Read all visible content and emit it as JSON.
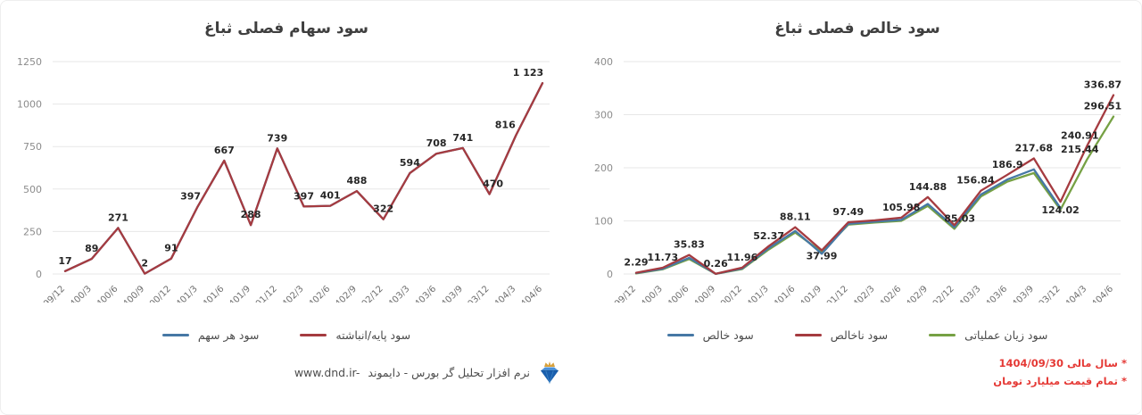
{
  "colors": {
    "red": "#a53b40",
    "blue": "#4678a5",
    "green": "#76a144",
    "grid": "#e7e7e7",
    "ytick": "#8c8c8c",
    "xtick": "#6f6f6f",
    "data_label": "#262626",
    "note_red": "#e53935"
  },
  "footer": {
    "website": "www.dnd.ir-",
    "brand": "نرم افزار تحلیل گر بورس - دایموند",
    "logo": "diamond-crown-logo",
    "notes": [
      "* سال مالی 1404/09/30",
      "* تمام قیمت میلیارد تومان"
    ]
  },
  "chart_data": [
    {
      "type": "line",
      "title": "سود سهام فصلی ثباغ",
      "xlabel": "",
      "ylabel": "",
      "ylim": [
        0,
        1250
      ],
      "yticks": [
        0,
        250,
        500,
        750,
        1000,
        1250
      ],
      "grid": true,
      "legend_position": "bottom",
      "categories": [
        "1399/12",
        "1400/3",
        "1400/6",
        "1400/9",
        "1400/12",
        "1401/3",
        "1401/6",
        "1401/9",
        "1401/12",
        "1402/3",
        "1402/6",
        "1402/9",
        "1402/12",
        "1403/3",
        "1403/6",
        "1403/9",
        "1403/12",
        "1404/3",
        "1404/6"
      ],
      "series": [
        {
          "name": "سود هر سهم",
          "color": "blue",
          "values": [
            17,
            89,
            271,
            2,
            91,
            397,
            667,
            288,
            739,
            397,
            401,
            488,
            322,
            594,
            708,
            741,
            470,
            816,
            1123
          ]
        },
        {
          "name": "سود پایه/انباشته",
          "color": "red",
          "values": [
            17,
            89,
            271,
            2,
            91,
            397,
            667,
            288,
            739,
            397,
            401,
            488,
            322,
            594,
            708,
            741,
            470,
            816,
            1123
          ]
        }
      ],
      "legend": [
        {
          "label": "سود هر سهم",
          "color": "blue"
        },
        {
          "label": "سود پایه/انباشته",
          "color": "red"
        }
      ],
      "point_labels": [
        {
          "i": 0,
          "s": 1,
          "t": "17"
        },
        {
          "i": 1,
          "s": 1,
          "t": "89"
        },
        {
          "i": 2,
          "s": 1,
          "t": "271"
        },
        {
          "i": 3,
          "s": 1,
          "t": "2"
        },
        {
          "i": 4,
          "s": 1,
          "t": "91"
        },
        {
          "i": 5,
          "s": 1,
          "t": "397",
          "dx": -8
        },
        {
          "i": 6,
          "s": 1,
          "t": "667"
        },
        {
          "i": 7,
          "s": 1,
          "t": "288"
        },
        {
          "i": 8,
          "s": 1,
          "t": "739"
        },
        {
          "i": 9,
          "s": 1,
          "t": "397"
        },
        {
          "i": 10,
          "s": 1,
          "t": "401"
        },
        {
          "i": 11,
          "s": 1,
          "t": "488"
        },
        {
          "i": 12,
          "s": 1,
          "t": "322"
        },
        {
          "i": 13,
          "s": 1,
          "t": "594"
        },
        {
          "i": 14,
          "s": 1,
          "t": "708"
        },
        {
          "i": 15,
          "s": 1,
          "t": "741"
        },
        {
          "i": 16,
          "s": 1,
          "t": "470",
          "dx": 4
        },
        {
          "i": 17,
          "s": 1,
          "t": "816",
          "dx": -12
        },
        {
          "i": 18,
          "s": 1,
          "t": "1 123",
          "dx": -16
        }
      ]
    },
    {
      "type": "line",
      "title": "سود خالص فصلی ثباغ",
      "xlabel": "",
      "ylabel": "",
      "ylim": [
        0,
        400
      ],
      "yticks": [
        0,
        100,
        200,
        300,
        400
      ],
      "grid": true,
      "legend_position": "bottom",
      "categories": [
        "1399/12",
        "1400/3",
        "1400/6",
        "1400/9",
        "1400/12",
        "1401/3",
        "1401/6",
        "1401/9",
        "1401/12",
        "1402/3",
        "1402/6",
        "1402/9",
        "1402/12",
        "1403/3",
        "1403/6",
        "1403/9",
        "1403/12",
        "1404/3",
        "1404/6"
      ],
      "series": [
        {
          "name": "سود زیان عملیاتی",
          "color": "green",
          "values": [
            1.0,
            8.8,
            28,
            0.1,
            9.2,
            46,
            78,
            41.5,
            93,
            97,
            100,
            128,
            85.03,
            146,
            174,
            190,
            121,
            215.44,
            296.51
          ]
        },
        {
          "name": "سود خالص",
          "color": "blue",
          "values": [
            1.6,
            9.8,
            30.5,
            0.2,
            10.2,
            48.5,
            81,
            37.99,
            94.5,
            98.5,
            102,
            132,
            88,
            149.5,
            178,
            197,
            124.02,
            null,
            null
          ]
        },
        {
          "name": "سود ناخالص",
          "color": "red",
          "values": [
            2.29,
            11.73,
            35.83,
            0.26,
            11.96,
            52.37,
            88.11,
            44.5,
            97.49,
            101,
            105.98,
            144.88,
            92,
            156.84,
            186.9,
            217.68,
            136,
            240.91,
            336.87
          ]
        }
      ],
      "legend": [
        {
          "label": "سود خالص",
          "color": "blue"
        },
        {
          "label": "سود ناخالص",
          "color": "red"
        },
        {
          "label": "سود زیان عملیاتی",
          "color": "green"
        }
      ],
      "point_labels": [
        {
          "i": 0,
          "s": 2,
          "t": "2.29"
        },
        {
          "i": 1,
          "s": 2,
          "t": "11.73"
        },
        {
          "i": 2,
          "s": 2,
          "t": "35.83"
        },
        {
          "i": 3,
          "s": 2,
          "t": "0.26"
        },
        {
          "i": 4,
          "s": 2,
          "t": "11.96"
        },
        {
          "i": 5,
          "s": 2,
          "t": "52.37"
        },
        {
          "i": 6,
          "s": 2,
          "t": "88.11"
        },
        {
          "i": 7,
          "s": 1,
          "t": "37.99",
          "dy": 14
        },
        {
          "i": 8,
          "s": 2,
          "t": "97.49"
        },
        {
          "i": 10,
          "s": 2,
          "t": "105.98"
        },
        {
          "i": 11,
          "s": 2,
          "t": "144.88"
        },
        {
          "i": 12,
          "s": 0,
          "t": "85.03",
          "dx": 6
        },
        {
          "i": 13,
          "s": 2,
          "t": "156.84",
          "dx": -6
        },
        {
          "i": 14,
          "s": 2,
          "t": "186.9"
        },
        {
          "i": 15,
          "s": 2,
          "t": "217.68"
        },
        {
          "i": 16,
          "s": 1,
          "t": "124.02",
          "dy": 14
        },
        {
          "i": 17,
          "s": 2,
          "t": "240.91",
          "dx": -8
        },
        {
          "i": 17,
          "s": 0,
          "t": "215.44",
          "dx": -8
        },
        {
          "i": 18,
          "s": 2,
          "t": "336.87",
          "dx": -12
        },
        {
          "i": 18,
          "s": 0,
          "t": "296.51",
          "dx": -12
        }
      ]
    }
  ]
}
